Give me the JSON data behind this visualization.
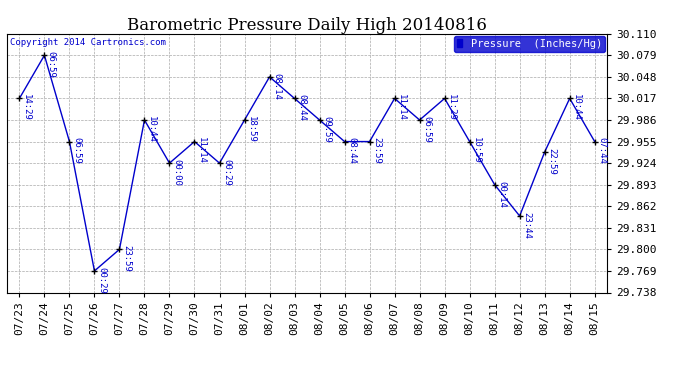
{
  "title": "Barometric Pressure Daily High 20140816",
  "copyright": "Copyright 2014 Cartronics.com",
  "legend_label": "Pressure  (Inches/Hg)",
  "dates": [
    "07/23",
    "07/24",
    "07/25",
    "07/26",
    "07/27",
    "07/28",
    "07/29",
    "07/30",
    "07/31",
    "08/01",
    "08/02",
    "08/03",
    "08/04",
    "08/05",
    "08/06",
    "08/07",
    "08/08",
    "08/09",
    "08/10",
    "08/11",
    "08/12",
    "08/13",
    "08/14",
    "08/15"
  ],
  "values": [
    30.017,
    30.079,
    29.955,
    29.769,
    29.8,
    29.986,
    29.924,
    29.955,
    29.924,
    29.986,
    30.048,
    30.017,
    29.986,
    29.955,
    29.955,
    30.017,
    29.986,
    30.017,
    29.955,
    29.893,
    29.848,
    29.94,
    30.017,
    29.955
  ],
  "labels": [
    "14:29",
    "06:59",
    "06:59",
    "00:29",
    "23:59",
    "10:44",
    "00:00",
    "11:14",
    "00:29",
    "18:59",
    "08:14",
    "08:44",
    "09:59",
    "08:44",
    "23:59",
    "11:14",
    "06:59",
    "11:29",
    "10:59",
    "00:14",
    "23:44",
    "22:59",
    "10:44",
    "07:44"
  ],
  "ylim_min": 29.738,
  "ylim_max": 30.11,
  "yticks": [
    29.738,
    29.769,
    29.8,
    29.831,
    29.862,
    29.893,
    29.924,
    29.955,
    29.986,
    30.017,
    30.048,
    30.079,
    30.11
  ],
  "line_color": "#0000CC",
  "marker_color": "#000000",
  "bg_color": "#ffffff",
  "grid_color": "#AAAAAA",
  "title_fontsize": 12,
  "label_fontsize": 6.5,
  "tick_fontsize": 8,
  "copyright_fontsize": 6.5,
  "legend_bg": "#0000CC",
  "legend_fg": "#ffffff"
}
